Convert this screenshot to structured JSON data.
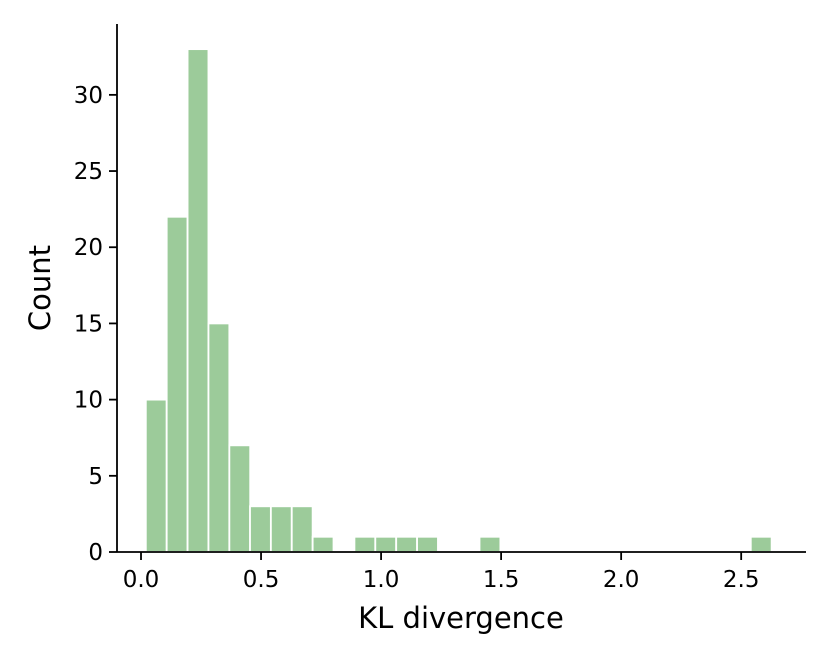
{
  "chart_data": {
    "type": "bar",
    "bar_color": "#9ccb9a",
    "xlabel": "KL divergence",
    "ylabel": "Count",
    "xlim": [
      -0.1,
      2.77
    ],
    "ylim": [
      0,
      34.65
    ],
    "xticks": [
      {
        "value": 0.0,
        "label": "0.0"
      },
      {
        "value": 0.5,
        "label": "0.5"
      },
      {
        "value": 1.0,
        "label": "1.0"
      },
      {
        "value": 1.5,
        "label": "1.5"
      },
      {
        "value": 2.0,
        "label": "2.0"
      },
      {
        "value": 2.5,
        "label": "2.5"
      }
    ],
    "yticks": [
      {
        "value": 0,
        "label": "0"
      },
      {
        "value": 5,
        "label": "5"
      },
      {
        "value": 10,
        "label": "10"
      },
      {
        "value": 15,
        "label": "15"
      },
      {
        "value": 20,
        "label": "20"
      },
      {
        "value": 25,
        "label": "25"
      },
      {
        "value": 30,
        "label": "30"
      }
    ],
    "bin_width": 0.0869,
    "bins": [
      {
        "x0": 0.02,
        "count": 10
      },
      {
        "x0": 0.107,
        "count": 22
      },
      {
        "x0": 0.194,
        "count": 33
      },
      {
        "x0": 0.281,
        "count": 15
      },
      {
        "x0": 0.368,
        "count": 7
      },
      {
        "x0": 0.454,
        "count": 3
      },
      {
        "x0": 0.541,
        "count": 3
      },
      {
        "x0": 0.628,
        "count": 3
      },
      {
        "x0": 0.715,
        "count": 1
      },
      {
        "x0": 0.802,
        "count": 0
      },
      {
        "x0": 0.889,
        "count": 1
      },
      {
        "x0": 0.976,
        "count": 1
      },
      {
        "x0": 1.063,
        "count": 1
      },
      {
        "x0": 1.15,
        "count": 1
      },
      {
        "x0": 1.237,
        "count": 0
      },
      {
        "x0": 1.324,
        "count": 0
      },
      {
        "x0": 1.41,
        "count": 1
      },
      {
        "x0": 1.497,
        "count": 0
      },
      {
        "x0": 1.584,
        "count": 0
      },
      {
        "x0": 1.671,
        "count": 0
      },
      {
        "x0": 1.758,
        "count": 0
      },
      {
        "x0": 1.845,
        "count": 0
      },
      {
        "x0": 1.932,
        "count": 0
      },
      {
        "x0": 2.019,
        "count": 0
      },
      {
        "x0": 2.106,
        "count": 0
      },
      {
        "x0": 2.193,
        "count": 0
      },
      {
        "x0": 2.28,
        "count": 0
      },
      {
        "x0": 2.367,
        "count": 0
      },
      {
        "x0": 2.454,
        "count": 0
      },
      {
        "x0": 2.54,
        "count": 1
      }
    ]
  }
}
